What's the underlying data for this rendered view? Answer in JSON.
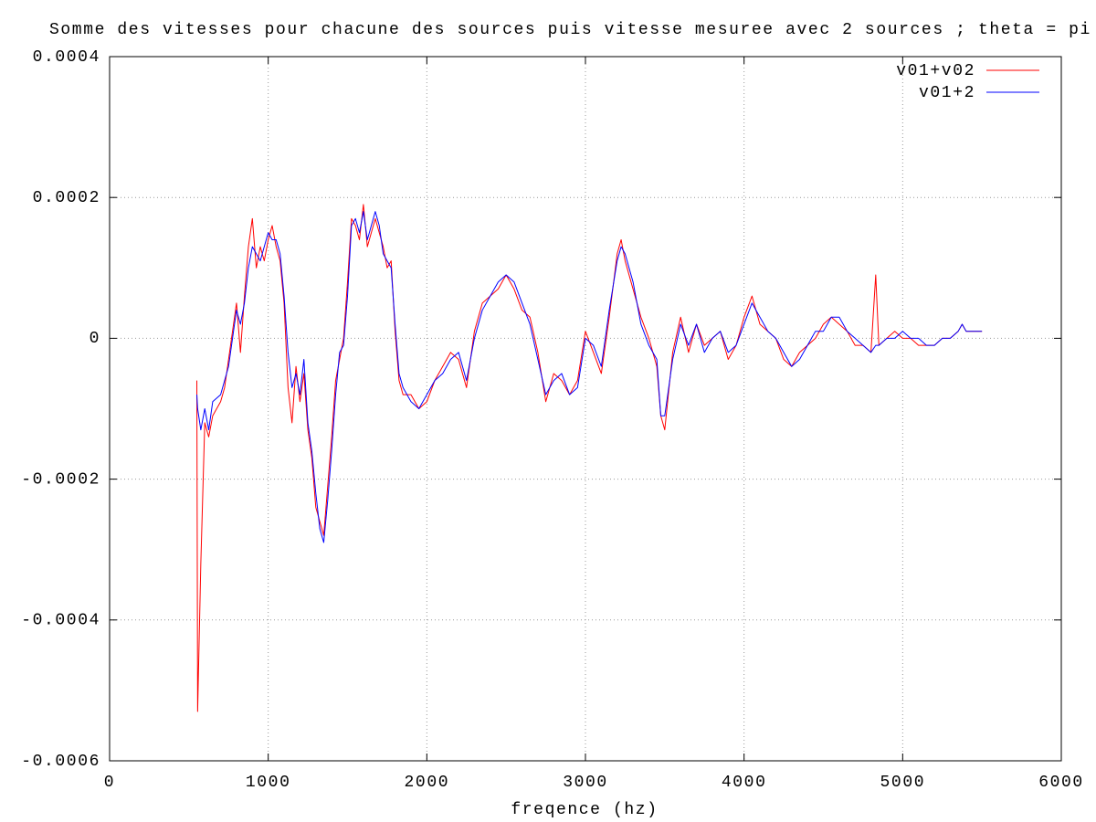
{
  "chart_data": {
    "type": "line",
    "title": "Somme des vitesses pour chacune des sources puis vitesse mesuree avec 2 sources ; theta = pi",
    "x_label": "freqence (hz)",
    "x": [
      550,
      555,
      575,
      600,
      625,
      650,
      700,
      725,
      750,
      775,
      800,
      825,
      850,
      875,
      900,
      925,
      950,
      975,
      1000,
      1025,
      1050,
      1075,
      1100,
      1125,
      1150,
      1175,
      1200,
      1225,
      1250,
      1275,
      1300,
      1325,
      1350,
      1375,
      1400,
      1425,
      1450,
      1475,
      1500,
      1525,
      1550,
      1575,
      1600,
      1625,
      1650,
      1675,
      1700,
      1725,
      1750,
      1775,
      1800,
      1825,
      1850,
      1900,
      1950,
      2000,
      2050,
      2100,
      2150,
      2200,
      2250,
      2300,
      2350,
      2400,
      2450,
      2500,
      2550,
      2600,
      2650,
      2700,
      2750,
      2800,
      2850,
      2900,
      2950,
      3000,
      3050,
      3100,
      3150,
      3200,
      3225,
      3250,
      3300,
      3350,
      3400,
      3450,
      3475,
      3500,
      3550,
      3600,
      3650,
      3700,
      3750,
      3800,
      3850,
      3900,
      3950,
      4000,
      4050,
      4100,
      4150,
      4200,
      4250,
      4300,
      4350,
      4400,
      4450,
      4500,
      4550,
      4600,
      4650,
      4700,
      4750,
      4800,
      4830,
      4850,
      4900,
      4950,
      5000,
      5050,
      5100,
      5150,
      5200,
      5250,
      5300,
      5350,
      5375,
      5400,
      5450,
      5500
    ],
    "series": [
      {
        "name": "v01+v02",
        "color": "#ff0000",
        "values": [
          -6e-05,
          -0.00053,
          -0.00032,
          -0.00012,
          -0.00014,
          -0.00011,
          -9e-05,
          -7e-05,
          -3e-05,
          1e-05,
          5e-05,
          -2e-05,
          6e-05,
          0.00013,
          0.00017,
          0.0001,
          0.00013,
          0.00011,
          0.00014,
          0.00016,
          0.00013,
          0.00011,
          5e-05,
          -7e-05,
          -0.00012,
          -4e-05,
          -9e-05,
          -5e-05,
          -0.00013,
          -0.00017,
          -0.00024,
          -0.00026,
          -0.00028,
          -0.00021,
          -0.00014,
          -6e-05,
          -3e-05,
          0,
          8e-05,
          0.00017,
          0.00016,
          0.00014,
          0.00019,
          0.00013,
          0.00015,
          0.00017,
          0.00015,
          0.00013,
          0.0001,
          0.00011,
          1e-05,
          -6e-05,
          -8e-05,
          -8e-05,
          -0.0001,
          -9e-05,
          -6e-05,
          -4e-05,
          -2e-05,
          -3e-05,
          -7e-05,
          1e-05,
          5e-05,
          6e-05,
          7e-05,
          9e-05,
          7e-05,
          4e-05,
          3e-05,
          -2e-05,
          -9e-05,
          -5e-05,
          -6e-05,
          -8e-05,
          -6e-05,
          1e-05,
          -2e-05,
          -5e-05,
          3e-05,
          0.00012,
          0.00014,
          0.00011,
          7e-05,
          3e-05,
          0,
          -4e-05,
          -0.00011,
          -0.00013,
          -2e-05,
          3e-05,
          -2e-05,
          2e-05,
          -1e-05,
          0,
          1e-05,
          -3e-05,
          -1e-05,
          3e-05,
          6e-05,
          2e-05,
          1e-05,
          0,
          -3e-05,
          -4e-05,
          -2e-05,
          -1e-05,
          0,
          2e-05,
          3e-05,
          2e-05,
          1e-05,
          -1e-05,
          -1e-05,
          -2e-05,
          9e-05,
          -1e-05,
          0,
          1e-05,
          0,
          0,
          -1e-05,
          -1e-05,
          -1e-05,
          0,
          0,
          1e-05,
          2e-05,
          1e-05,
          1e-05,
          1e-05
        ]
      },
      {
        "name": "v01+2",
        "color": "#0000ff",
        "values": [
          -8e-05,
          -0.0001,
          -0.00013,
          -0.0001,
          -0.00013,
          -9e-05,
          -8e-05,
          -6e-05,
          -4e-05,
          0,
          4e-05,
          2e-05,
          5e-05,
          0.0001,
          0.00013,
          0.00012,
          0.00011,
          0.00013,
          0.00015,
          0.00014,
          0.00014,
          0.00012,
          6e-05,
          -2e-05,
          -7e-05,
          -5e-05,
          -8e-05,
          -3e-05,
          -0.00012,
          -0.00016,
          -0.00022,
          -0.00027,
          -0.00029,
          -0.00023,
          -0.00016,
          -8e-05,
          -2e-05,
          -1e-05,
          6e-05,
          0.00016,
          0.00017,
          0.00015,
          0.00018,
          0.00014,
          0.00016,
          0.00018,
          0.00016,
          0.00012,
          0.00011,
          0.0001,
          2e-05,
          -5e-05,
          -7e-05,
          -9e-05,
          -0.0001,
          -8e-05,
          -6e-05,
          -5e-05,
          -3e-05,
          -2e-05,
          -6e-05,
          0,
          4e-05,
          6e-05,
          8e-05,
          9e-05,
          8e-05,
          5e-05,
          2e-05,
          -3e-05,
          -8e-05,
          -6e-05,
          -5e-05,
          -8e-05,
          -7e-05,
          0,
          -1e-05,
          -4e-05,
          4e-05,
          0.00011,
          0.00013,
          0.00012,
          8e-05,
          2e-05,
          -1e-05,
          -3e-05,
          -0.00011,
          -0.00011,
          -3e-05,
          2e-05,
          -1e-05,
          2e-05,
          -2e-05,
          0,
          1e-05,
          -2e-05,
          -1e-05,
          2e-05,
          5e-05,
          3e-05,
          1e-05,
          0,
          -2e-05,
          -4e-05,
          -3e-05,
          -1e-05,
          1e-05,
          1e-05,
          3e-05,
          3e-05,
          1e-05,
          0,
          -1e-05,
          -2e-05,
          -1e-05,
          -1e-05,
          0,
          0,
          1e-05,
          0,
          0,
          -1e-05,
          -1e-05,
          0,
          0,
          1e-05,
          2e-05,
          1e-05,
          1e-05,
          1e-05
        ]
      }
    ],
    "xlim": [
      0,
      6000
    ],
    "xticks": [
      0,
      1000,
      2000,
      3000,
      4000,
      5000,
      6000
    ],
    "ylim": [
      -0.0006,
      0.0004
    ],
    "yticks": [
      -0.0006,
      -0.0004,
      -0.0002,
      0,
      0.0002,
      0.0004
    ],
    "grid": true,
    "legend": "top-right"
  }
}
